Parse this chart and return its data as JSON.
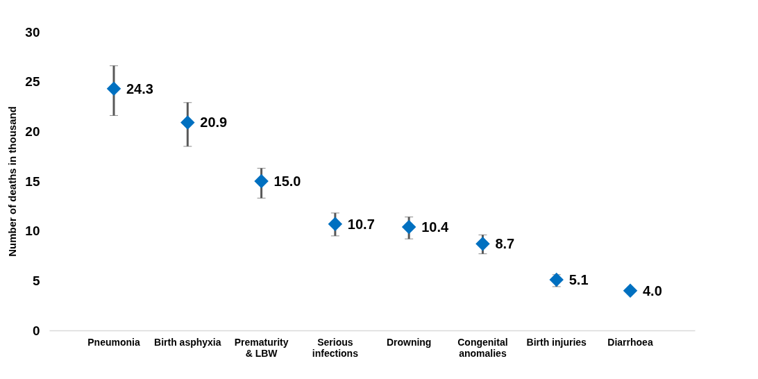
{
  "chart_data": {
    "type": "scatter",
    "ylabel": "Number of deaths in thousand",
    "categories": [
      "Pneumonia",
      "Birth asphyxia",
      "Prematurity & LBW",
      "Serious infections",
      "Drowning",
      "Congenital anomalies",
      "Birth injuries",
      "Diarrhoea"
    ],
    "values": [
      24.3,
      20.9,
      15.0,
      10.7,
      10.4,
      8.7,
      5.1,
      4.0
    ],
    "errors": [
      [
        21.6,
        26.6
      ],
      [
        18.5,
        22.9
      ],
      [
        13.3,
        16.3
      ],
      [
        9.5,
        11.8
      ],
      [
        9.2,
        11.4
      ],
      [
        7.7,
        9.6
      ],
      [
        4.4,
        5.6
      ],
      null
    ],
    "value_labels": [
      "24.3",
      "20.9",
      "15.0",
      "10.7",
      "10.4",
      "8.7",
      "5.1",
      "4.0"
    ],
    "color": "#0070c0",
    "marker": "diamond",
    "ylim": [
      0,
      30
    ],
    "yticks": [
      0,
      5,
      10,
      15,
      20,
      25,
      30
    ],
    "grid": false
  }
}
